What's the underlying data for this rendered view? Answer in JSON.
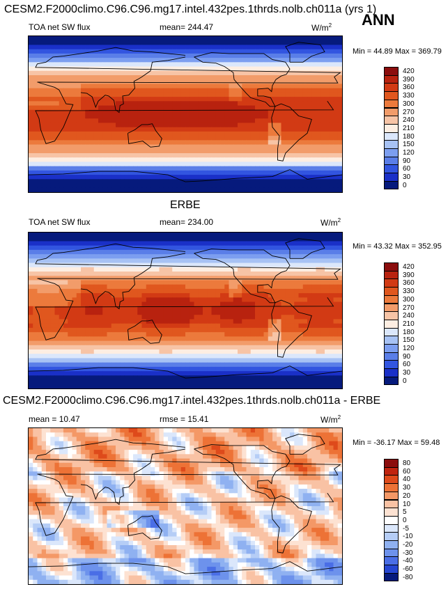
{
  "header": {
    "title": "CESM2.F2000climo.C96.C96.mg17.intel.432pes.1thrds.nolb.ch011a (yrs 1)",
    "season": "ANN"
  },
  "panels": [
    {
      "heading": "",
      "left": "TOA net SW flux",
      "center": "mean= 244.47",
      "units_base": "W/m",
      "units_exp": "2",
      "minmax": "Min =  44.89 Max = 369.79"
    },
    {
      "heading": "ERBE",
      "left": "TOA net SW flux",
      "center": "mean= 234.00",
      "units_base": "W/m",
      "units_exp": "2",
      "minmax": "Min =  43.32 Max = 352.95"
    },
    {
      "heading": "CESM2.F2000climo.C96.C96.mg17.intel.432pes.1thrds.nolb.ch011a - ERBE",
      "left": "mean =  10.47",
      "center": "rmse =  15.41",
      "units_base": "W/m",
      "units_exp": "2",
      "minmax": "Min = -36.17 Max =  59.48"
    }
  ],
  "chart_data": [
    {
      "type": "heatmap",
      "title": "TOA net SW flux",
      "units": "W/m2",
      "mean": 244.47,
      "min": 44.89,
      "max": 369.79,
      "colorbar_levels": [
        "420",
        "390",
        "360",
        "330",
        "300",
        "270",
        "240",
        "210",
        "180",
        "150",
        "120",
        "90",
        "60",
        "30",
        "0"
      ],
      "colorbar_colors": [
        "#8b0d0d",
        "#b8220f",
        "#d23a14",
        "#e0571e",
        "#ec7a3c",
        "#f29c6a",
        "#f7c4a6",
        "#fdeee2",
        "#dbe7fb",
        "#a7c2f4",
        "#7c9ef0",
        "#5a7ee8",
        "#3255e0",
        "#1a30c8",
        "#061a7c"
      ],
      "field": "sw_model"
    },
    {
      "type": "heatmap",
      "title": "TOA net SW flux",
      "units": "W/m2",
      "mean": 234.0,
      "min": 43.32,
      "max": 352.95,
      "colorbar_levels": [
        "420",
        "390",
        "360",
        "330",
        "300",
        "270",
        "240",
        "210",
        "180",
        "150",
        "120",
        "90",
        "60",
        "30",
        "0"
      ],
      "colorbar_colors": [
        "#8b0d0d",
        "#b8220f",
        "#d23a14",
        "#e0571e",
        "#ec7a3c",
        "#f29c6a",
        "#f7c4a6",
        "#fdeee2",
        "#dbe7fb",
        "#a7c2f4",
        "#7c9ef0",
        "#5a7ee8",
        "#3255e0",
        "#1a30c8",
        "#061a7c"
      ],
      "field": "sw_obs"
    },
    {
      "type": "heatmap",
      "title": "CESM2.F2000climo.C96.C96.mg17.intel.432pes.1thrds.nolb.ch011a - ERBE",
      "units": "W/m2",
      "mean": 10.47,
      "rmse": 15.41,
      "min": -36.17,
      "max": 59.48,
      "colorbar_levels": [
        "80",
        "60",
        "40",
        "30",
        "20",
        "10",
        "5",
        "0",
        "-5",
        "-10",
        "-20",
        "-30",
        "-40",
        "-60",
        "-80"
      ],
      "colorbar_colors": [
        "#8b0d0d",
        "#c0240f",
        "#de4a1b",
        "#ed7236",
        "#f49866",
        "#f9c2a4",
        "#fde2d2",
        "#ffffff",
        "#dbe7fb",
        "#b5cdf6",
        "#8fb1f1",
        "#6d92ec",
        "#4a6ee6",
        "#2546d2",
        "#061a7c"
      ],
      "field": "sw_diff"
    }
  ]
}
